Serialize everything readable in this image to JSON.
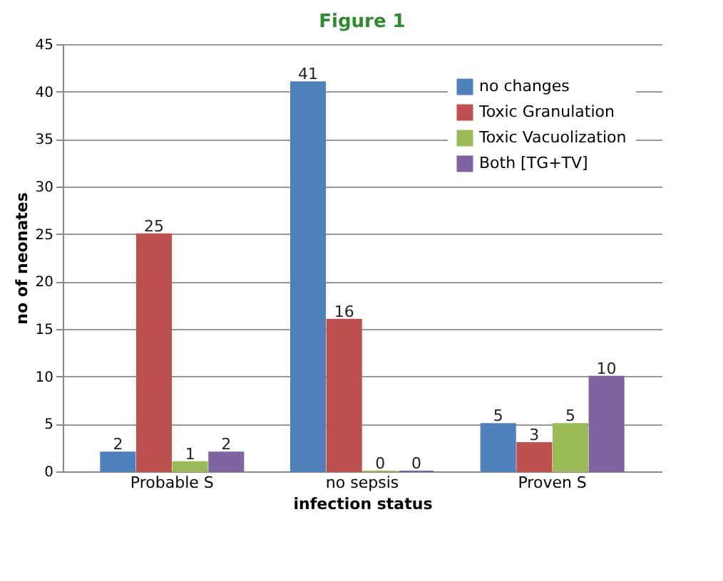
{
  "chart_data": {
    "type": "bar",
    "title": "Figure 1",
    "xlabel": "infection status",
    "ylabel": "no of neonates",
    "categories": [
      "Probable S",
      "no sepsis",
      "Proven S"
    ],
    "series": [
      {
        "name": "no changes",
        "color": "#4f81bd",
        "values": [
          2,
          41,
          5
        ]
      },
      {
        "name": "Toxic Granulation",
        "color": "#c0504d",
        "values": [
          25,
          16,
          3
        ]
      },
      {
        "name": "Toxic Vacuolization",
        "color": "#9bbb59",
        "values": [
          1,
          0,
          5
        ]
      },
      {
        "name": "Both [TG+TV]",
        "color": "#8064a2",
        "values": [
          2,
          0,
          10
        ]
      }
    ],
    "ylim": [
      0,
      45
    ],
    "yticks": [
      0,
      5,
      10,
      15,
      20,
      25,
      30,
      35,
      40,
      45
    ],
    "grid": "y",
    "legend": "top right",
    "data_labels": true
  }
}
